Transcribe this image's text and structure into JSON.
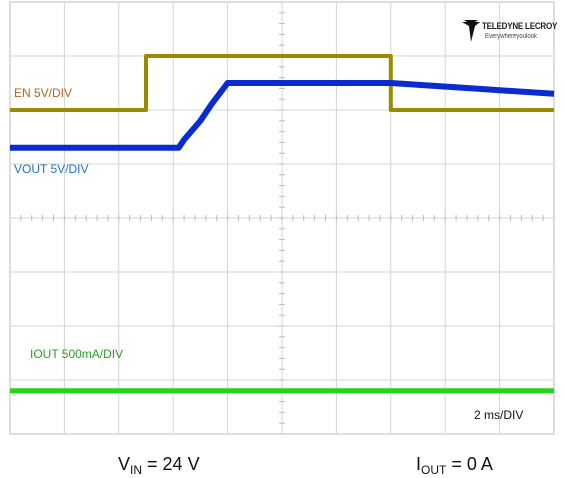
{
  "logo": {
    "brand": "TELEDYNE LECROY",
    "tagline": "Everywhereyoulook"
  },
  "chart_data": {
    "type": "line",
    "timebase": "2 ms/DIV",
    "x_divisions": 10,
    "y_divisions": 8,
    "x_unit": "div",
    "series": [
      {
        "name": "EN 5V/DIV",
        "color": "#9b8a00",
        "label_color": "#b5651d",
        "x": [
          0,
          2.5,
          2.5,
          7.0,
          7.0,
          10
        ],
        "y_div": [
          6.0,
          6.0,
          7.0,
          7.0,
          6.0,
          6.0
        ]
      },
      {
        "name": "VOUT 5V/DIV",
        "color": "#0a2bd0",
        "label_color": "#1f6fd0",
        "x": [
          0,
          3.1,
          3.2,
          3.5,
          3.7,
          4.0,
          7.0,
          8.5,
          10
        ],
        "y_div": [
          5.3,
          5.3,
          5.45,
          5.8,
          6.1,
          6.5,
          6.5,
          6.4,
          6.3
        ]
      },
      {
        "name": "IOUT 500mA/DIV",
        "color": "#22d41c",
        "label_color": "#2a9d2a",
        "x": [
          0,
          10
        ],
        "y_div": [
          0.8,
          0.8
        ]
      }
    ],
    "annotations": {
      "timebase_label": "2 ms/DIV"
    }
  },
  "conditions": {
    "vin": {
      "symbol": "V",
      "sub": "IN",
      "value": "= 24 V"
    },
    "iout": {
      "symbol": "I",
      "sub": "OUT",
      "value": "= 0 A"
    }
  }
}
